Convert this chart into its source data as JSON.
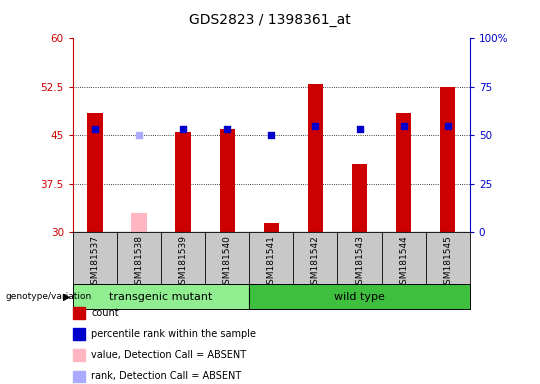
{
  "title": "GDS2823 / 1398361_at",
  "samples": [
    "GSM181537",
    "GSM181538",
    "GSM181539",
    "GSM181540",
    "GSM181541",
    "GSM181542",
    "GSM181543",
    "GSM181544",
    "GSM181545"
  ],
  "count_values": [
    48.5,
    null,
    45.5,
    46.0,
    31.5,
    53.0,
    40.5,
    48.5,
    52.5
  ],
  "count_absent": [
    null,
    33.0,
    null,
    null,
    null,
    null,
    null,
    null,
    null
  ],
  "percentile_values": [
    46.0,
    null,
    46.0,
    46.0,
    45.0,
    46.5,
    46.0,
    46.5,
    46.5
  ],
  "percentile_absent": [
    null,
    45.0,
    null,
    null,
    null,
    null,
    null,
    null,
    null
  ],
  "ylim_left": [
    30,
    60
  ],
  "ylim_right": [
    0,
    100
  ],
  "yticks_left": [
    30,
    37.5,
    45,
    52.5,
    60
  ],
  "yticks_right": [
    0,
    25,
    50,
    75,
    100
  ],
  "ytick_labels_left": [
    "30",
    "37.5",
    "45",
    "52.5",
    "60"
  ],
  "ytick_labels_right": [
    "0",
    "25",
    "50",
    "75",
    "100%"
  ],
  "group_labels": [
    "transgenic mutant",
    "wild type"
  ],
  "group_colors": [
    "#90EE90",
    "#3EBF3E"
  ],
  "genotype_label": "genotype/variation",
  "bar_color": "#CC0000",
  "bar_absent_color": "#FFB6C1",
  "dot_color": "#0000CC",
  "dot_absent_color": "#AAAAFF",
  "background_color": "#C8C8C8",
  "plot_bg_color": "#FFFFFF",
  "left_axis_color": "#CC0000",
  "right_axis_color": "#0000CC",
  "legend_items": [
    {
      "color": "#CC0000",
      "label": "count"
    },
    {
      "color": "#0000CC",
      "label": "percentile rank within the sample"
    },
    {
      "color": "#FFB6C1",
      "label": "value, Detection Call = ABSENT"
    },
    {
      "color": "#AAAAFF",
      "label": "rank, Detection Call = ABSENT"
    }
  ],
  "bar_width": 0.35,
  "dot_size": 25
}
